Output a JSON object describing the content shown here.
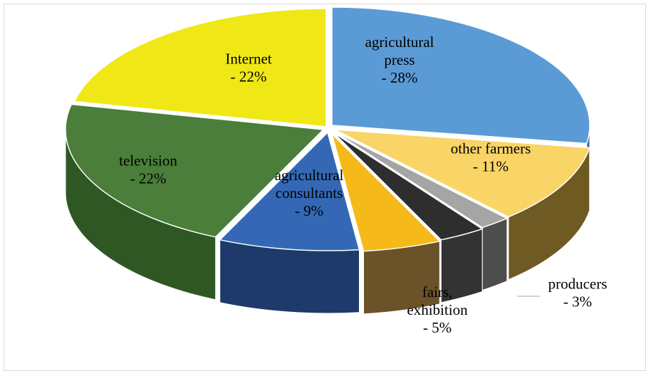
{
  "chart_data": {
    "type": "pie",
    "style": "3d-exploded-wedge",
    "title": "",
    "slices": [
      {
        "name": "agricultural press",
        "value": 28,
        "label_lines": [
          "agricultural",
          "press",
          "- 28%"
        ],
        "color": "#5b9bd5",
        "side_color": "#3a6fa0"
      },
      {
        "name": "other farmers",
        "value": 11,
        "label_lines": [
          "other farmers",
          "- 11%"
        ],
        "color": "#f9d466",
        "side_color": "#6e5a22"
      },
      {
        "name": "unlabeled",
        "value": 2,
        "label_lines": [],
        "color": "#a5a5a5",
        "side_color": "#4d4d4d"
      },
      {
        "name": "producers",
        "value": 3,
        "label_lines": [
          "producers",
          "- 3%"
        ],
        "color": "#2e2e2e",
        "side_color": "#333333"
      },
      {
        "name": "fairs, exhibition",
        "value": 5,
        "label_lines": [
          "fairs,",
          "exhibition",
          "- 5%"
        ],
        "color": "#f5b919",
        "side_color": "#6b5228"
      },
      {
        "name": "agricultural consultants",
        "value": 9,
        "label_lines": [
          "agricultural",
          "consultants",
          "- 9%"
        ],
        "color": "#3468b5",
        "side_color": "#1d3a6b"
      },
      {
        "name": "television",
        "value": 22,
        "label_lines": [
          "television",
          "- 22%"
        ],
        "color": "#4a7e3a",
        "side_color": "#2f5724"
      },
      {
        "name": "Internet",
        "value": 22,
        "label_lines": [
          "Internet",
          "- 22%"
        ],
        "color": "#f0e816",
        "side_color": "#8a8510"
      }
    ],
    "legend": "none"
  }
}
